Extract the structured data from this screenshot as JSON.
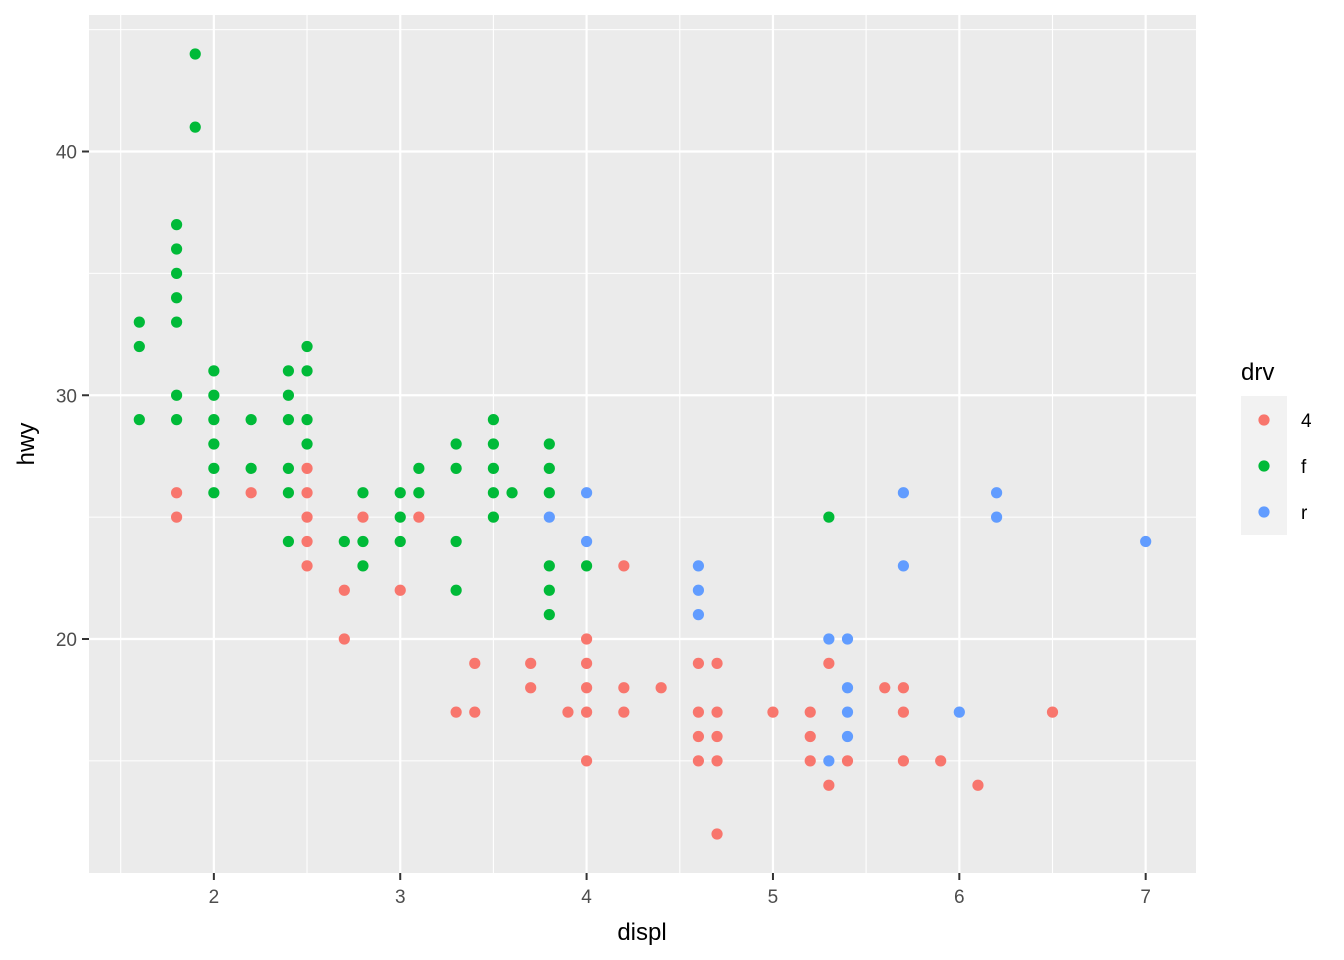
{
  "chart_data": {
    "type": "scatter",
    "xlabel": "displ",
    "ylabel": "hwy",
    "xlim": [
      1.33,
      7.27
    ],
    "ylim": [
      10.4,
      45.6
    ],
    "x_ticks": [
      2,
      3,
      4,
      5,
      6,
      7
    ],
    "y_ticks": [
      20,
      30,
      40
    ],
    "grid": true,
    "legend": {
      "title": "drv",
      "position": "right",
      "entries": [
        {
          "label": "4",
          "color": "#F8766D"
        },
        {
          "label": "f",
          "color": "#00BA38"
        },
        {
          "label": "r",
          "color": "#619CFF"
        }
      ]
    },
    "series": [
      {
        "name": "4",
        "color": "#F8766D",
        "points": [
          [
            1.8,
            26
          ],
          [
            1.8,
            25
          ],
          [
            2.2,
            26
          ],
          [
            2.5,
            27
          ],
          [
            2.5,
            26
          ],
          [
            2.5,
            25
          ],
          [
            2.5,
            24
          ],
          [
            2.5,
            23
          ],
          [
            2.7,
            22
          ],
          [
            2.7,
            20
          ],
          [
            2.8,
            25
          ],
          [
            3.0,
            22
          ],
          [
            3.1,
            25
          ],
          [
            3.3,
            17
          ],
          [
            3.4,
            19
          ],
          [
            3.4,
            17
          ],
          [
            3.7,
            19
          ],
          [
            3.7,
            18
          ],
          [
            3.9,
            17
          ],
          [
            4.0,
            20
          ],
          [
            4.0,
            19
          ],
          [
            4.0,
            18
          ],
          [
            4.0,
            17
          ],
          [
            4.0,
            15
          ],
          [
            4.2,
            23
          ],
          [
            4.2,
            18
          ],
          [
            4.2,
            17
          ],
          [
            4.4,
            18
          ],
          [
            4.6,
            19
          ],
          [
            4.6,
            17
          ],
          [
            4.6,
            16
          ],
          [
            4.6,
            15
          ],
          [
            4.7,
            19
          ],
          [
            4.7,
            17
          ],
          [
            4.7,
            16
          ],
          [
            4.7,
            15
          ],
          [
            4.7,
            12
          ],
          [
            5.0,
            17
          ],
          [
            5.2,
            17
          ],
          [
            5.2,
            16
          ],
          [
            5.2,
            15
          ],
          [
            5.3,
            19
          ],
          [
            5.3,
            14
          ],
          [
            5.4,
            15
          ],
          [
            5.6,
            18
          ],
          [
            5.7,
            18
          ],
          [
            5.7,
            17
          ],
          [
            5.7,
            15
          ],
          [
            5.9,
            15
          ],
          [
            6.1,
            14
          ],
          [
            6.5,
            17
          ]
        ]
      },
      {
        "name": "f",
        "color": "#00BA38",
        "points": [
          [
            1.6,
            33
          ],
          [
            1.6,
            32
          ],
          [
            1.6,
            29
          ],
          [
            1.8,
            37
          ],
          [
            1.8,
            36
          ],
          [
            1.8,
            35
          ],
          [
            1.8,
            34
          ],
          [
            1.8,
            33
          ],
          [
            1.8,
            30
          ],
          [
            1.8,
            29
          ],
          [
            1.9,
            44
          ],
          [
            1.9,
            41
          ],
          [
            2.0,
            31
          ],
          [
            2.0,
            30
          ],
          [
            2.0,
            29
          ],
          [
            2.0,
            28
          ],
          [
            2.0,
            27
          ],
          [
            2.0,
            26
          ],
          [
            2.2,
            29
          ],
          [
            2.2,
            27
          ],
          [
            2.4,
            31
          ],
          [
            2.4,
            30
          ],
          [
            2.4,
            29
          ],
          [
            2.4,
            27
          ],
          [
            2.4,
            26
          ],
          [
            2.4,
            24
          ],
          [
            2.5,
            32
          ],
          [
            2.5,
            31
          ],
          [
            2.5,
            29
          ],
          [
            2.5,
            28
          ],
          [
            2.7,
            24
          ],
          [
            2.8,
            26
          ],
          [
            2.8,
            24
          ],
          [
            2.8,
            23
          ],
          [
            3.0,
            26
          ],
          [
            3.0,
            25
          ],
          [
            3.0,
            24
          ],
          [
            3.1,
            27
          ],
          [
            3.1,
            26
          ],
          [
            3.3,
            28
          ],
          [
            3.3,
            27
          ],
          [
            3.3,
            24
          ],
          [
            3.3,
            22
          ],
          [
            3.5,
            29
          ],
          [
            3.5,
            28
          ],
          [
            3.5,
            27
          ],
          [
            3.5,
            26
          ],
          [
            3.5,
            25
          ],
          [
            3.6,
            26
          ],
          [
            3.8,
            28
          ],
          [
            3.8,
            27
          ],
          [
            3.8,
            26
          ],
          [
            3.8,
            23
          ],
          [
            3.8,
            22
          ],
          [
            3.8,
            21
          ],
          [
            4.0,
            23
          ],
          [
            5.3,
            25
          ]
        ]
      },
      {
        "name": "r",
        "color": "#619CFF",
        "points": [
          [
            3.8,
            25
          ],
          [
            4.0,
            26
          ],
          [
            4.0,
            24
          ],
          [
            4.6,
            23
          ],
          [
            4.6,
            22
          ],
          [
            4.6,
            21
          ],
          [
            5.3,
            20
          ],
          [
            5.3,
            15
          ],
          [
            5.4,
            20
          ],
          [
            5.4,
            18
          ],
          [
            5.4,
            17
          ],
          [
            5.4,
            16
          ],
          [
            5.7,
            26
          ],
          [
            5.7,
            23
          ],
          [
            6.0,
            17
          ],
          [
            6.2,
            26
          ],
          [
            6.2,
            25
          ],
          [
            7.0,
            24
          ]
        ]
      }
    ]
  }
}
